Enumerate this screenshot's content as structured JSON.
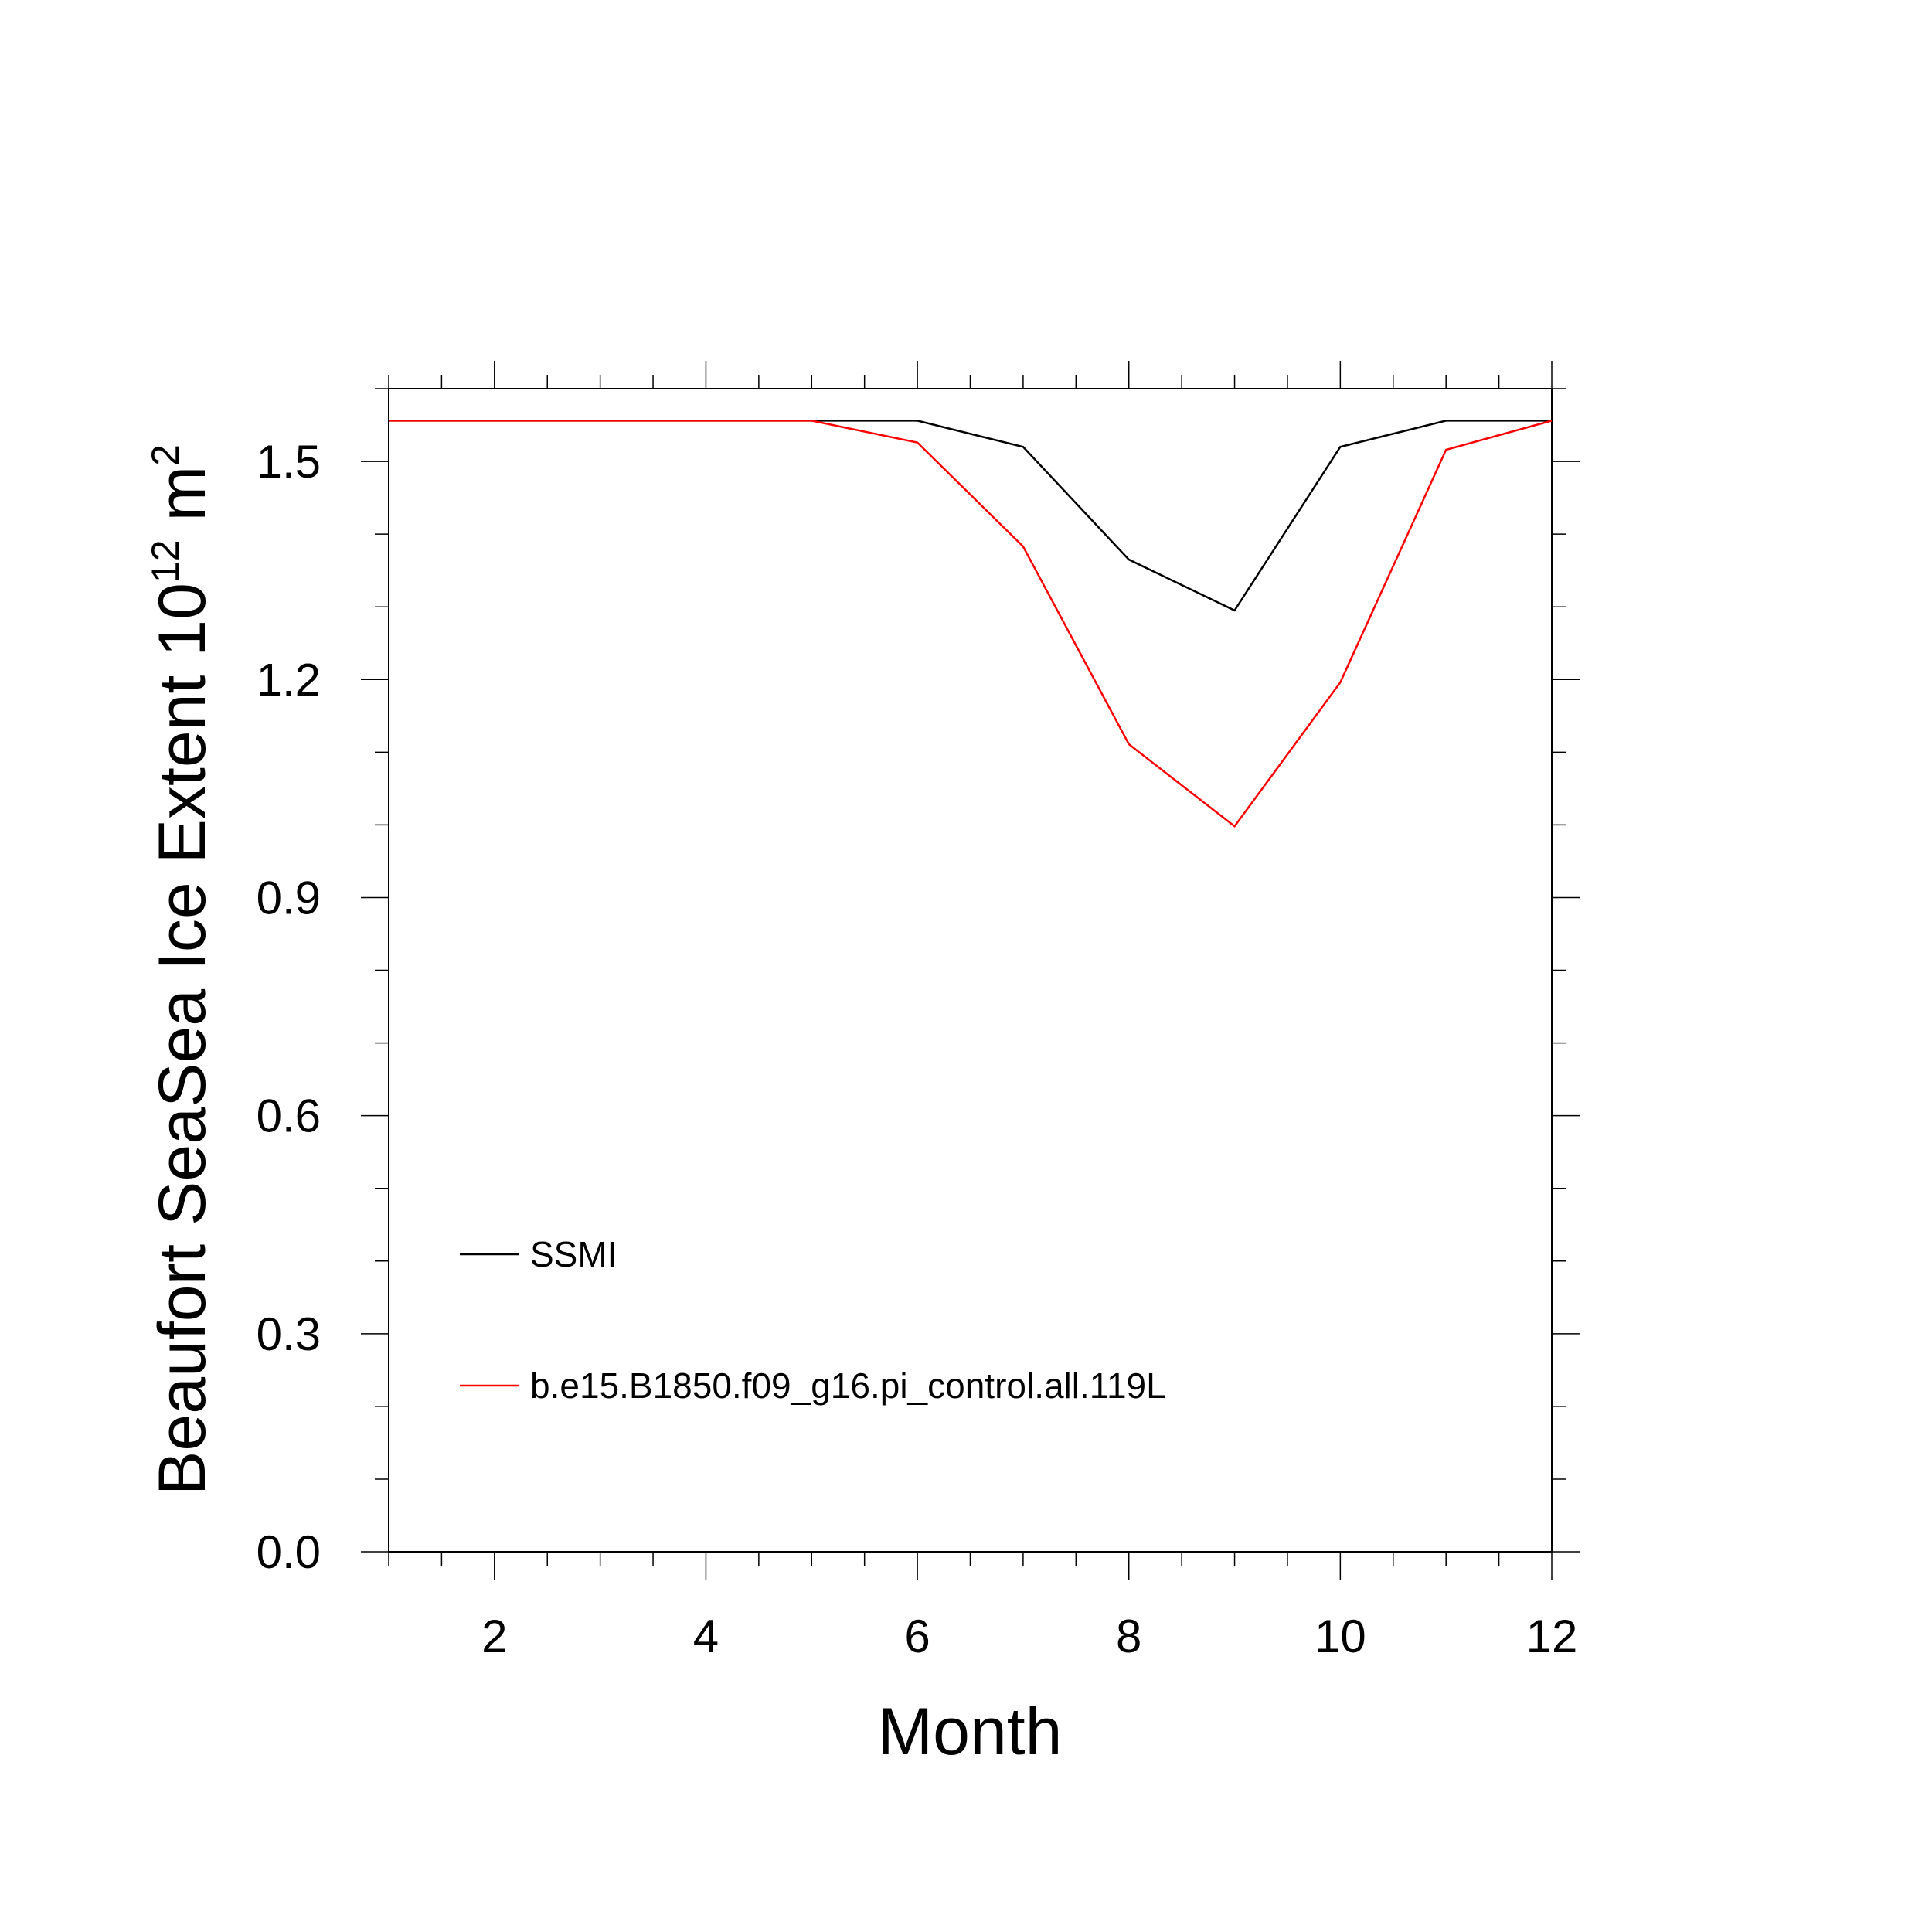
{
  "chart_data": {
    "type": "line",
    "title": "",
    "xlabel": "Month",
    "ylabel": {
      "text": "Beaufort SeaSea Ice Extent 10",
      "superscript": "12",
      "unit": " m",
      "unit_superscript": "2"
    },
    "xlim": [
      1,
      12
    ],
    "ylim": [
      0.0,
      1.6
    ],
    "x_ticks": [
      2,
      4,
      6,
      8,
      10,
      12
    ],
    "x_tick_labels": [
      "2",
      "4",
      "6",
      "8",
      "10",
      "12"
    ],
    "y_ticks": [
      0.0,
      0.3,
      0.6,
      0.9,
      1.2,
      1.5
    ],
    "y_tick_labels": [
      "0.0",
      "0.3",
      "0.6",
      "0.9",
      "1.2",
      "1.5"
    ],
    "grid": false,
    "legend_position": "bottom-left",
    "x": [
      1,
      2,
      3,
      4,
      5,
      6,
      7,
      8,
      9,
      10,
      11,
      12
    ],
    "series": [
      {
        "name": "SSMI",
        "color": "#000000",
        "values": [
          1.556,
          1.556,
          1.556,
          1.556,
          1.556,
          1.556,
          1.52,
          1.365,
          1.295,
          1.52,
          1.556,
          1.556
        ]
      },
      {
        "name": "b.e15.B1850.f09_g16.pi_control.all.119L",
        "color": "#ff0000",
        "values": [
          1.556,
          1.556,
          1.556,
          1.556,
          1.556,
          1.526,
          1.383,
          1.111,
          0.998,
          1.196,
          1.516,
          1.556
        ]
      }
    ]
  }
}
